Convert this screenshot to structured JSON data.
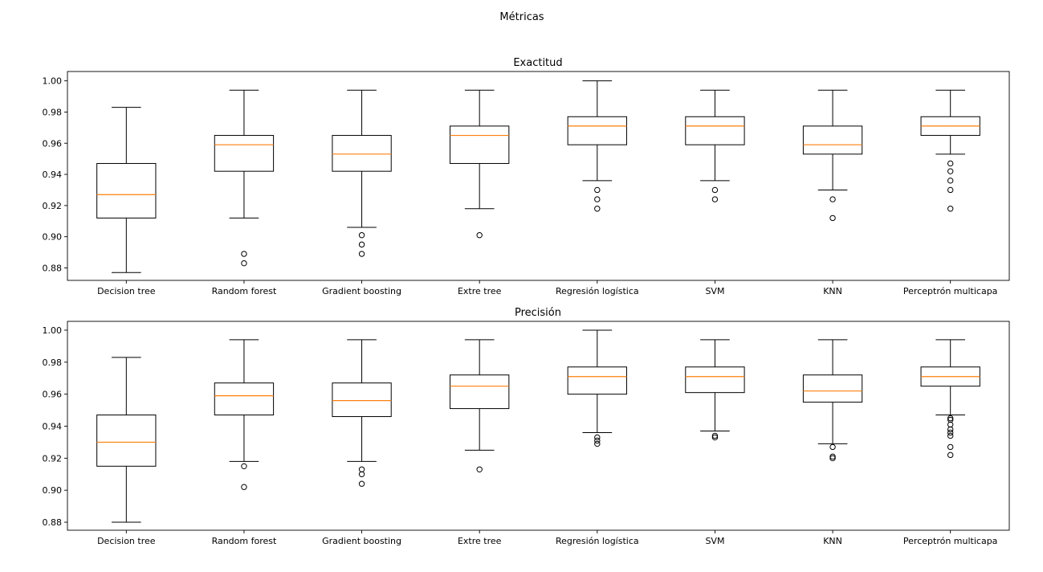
{
  "figure": {
    "suptitle": "Métricas"
  },
  "chart_data": [
    {
      "type": "box",
      "title": "Exactitud",
      "xlabel": "",
      "ylabel": "",
      "ylim": [
        0.872,
        1.006
      ],
      "yticks": [
        0.88,
        0.9,
        0.92,
        0.94,
        0.96,
        0.98,
        1.0
      ],
      "ytick_labels": [
        "0.88",
        "0.90",
        "0.92",
        "0.94",
        "0.96",
        "0.98",
        "1.00"
      ],
      "grid": false,
      "colors": {
        "box": "#000000",
        "median": "#ff7f0e",
        "flier": "#000000"
      },
      "categories": [
        "Decision tree",
        "Random forest",
        "Gradient boosting",
        "Extre tree",
        "Regresión logística",
        "SVM",
        "KNN",
        "Perceptrón multicapa"
      ],
      "boxes": [
        {
          "whisker_low": 0.877,
          "q1": 0.912,
          "median": 0.927,
          "q3": 0.947,
          "whisker_high": 0.983,
          "outliers": []
        },
        {
          "whisker_low": 0.912,
          "q1": 0.942,
          "median": 0.959,
          "q3": 0.965,
          "whisker_high": 0.994,
          "outliers": [
            0.889,
            0.883
          ]
        },
        {
          "whisker_low": 0.906,
          "q1": 0.942,
          "median": 0.953,
          "q3": 0.965,
          "whisker_high": 0.994,
          "outliers": [
            0.901,
            0.895,
            0.889
          ]
        },
        {
          "whisker_low": 0.918,
          "q1": 0.947,
          "median": 0.965,
          "q3": 0.971,
          "whisker_high": 0.994,
          "outliers": [
            0.901
          ]
        },
        {
          "whisker_low": 0.936,
          "q1": 0.959,
          "median": 0.971,
          "q3": 0.977,
          "whisker_high": 1.0,
          "outliers": [
            0.93,
            0.924,
            0.918
          ]
        },
        {
          "whisker_low": 0.936,
          "q1": 0.959,
          "median": 0.971,
          "q3": 0.977,
          "whisker_high": 0.994,
          "outliers": [
            0.93,
            0.924
          ]
        },
        {
          "whisker_low": 0.93,
          "q1": 0.953,
          "median": 0.959,
          "q3": 0.971,
          "whisker_high": 0.994,
          "outliers": [
            0.924,
            0.912
          ]
        },
        {
          "whisker_low": 0.953,
          "q1": 0.965,
          "median": 0.971,
          "q3": 0.977,
          "whisker_high": 0.994,
          "outliers": [
            0.947,
            0.942,
            0.936,
            0.93,
            0.918
          ]
        }
      ]
    },
    {
      "type": "box",
      "title": "Precisión",
      "xlabel": "",
      "ylabel": "",
      "ylim": [
        0.875,
        1.0055
      ],
      "yticks": [
        0.88,
        0.9,
        0.92,
        0.94,
        0.96,
        0.98,
        1.0
      ],
      "ytick_labels": [
        "0.88",
        "0.90",
        "0.92",
        "0.94",
        "0.96",
        "0.98",
        "1.00"
      ],
      "grid": false,
      "colors": {
        "box": "#000000",
        "median": "#ff7f0e",
        "flier": "#000000"
      },
      "categories": [
        "Decision tree",
        "Random forest",
        "Gradient boosting",
        "Extre tree",
        "Regresión logística",
        "SVM",
        "KNN",
        "Perceptrón multicapa"
      ],
      "boxes": [
        {
          "whisker_low": 0.88,
          "q1": 0.915,
          "median": 0.93,
          "q3": 0.947,
          "whisker_high": 0.983,
          "outliers": []
        },
        {
          "whisker_low": 0.918,
          "q1": 0.947,
          "median": 0.959,
          "q3": 0.967,
          "whisker_high": 0.994,
          "outliers": [
            0.915,
            0.902
          ]
        },
        {
          "whisker_low": 0.918,
          "q1": 0.946,
          "median": 0.956,
          "q3": 0.967,
          "whisker_high": 0.994,
          "outliers": [
            0.913,
            0.91,
            0.904
          ]
        },
        {
          "whisker_low": 0.925,
          "q1": 0.951,
          "median": 0.965,
          "q3": 0.972,
          "whisker_high": 0.994,
          "outliers": [
            0.913
          ]
        },
        {
          "whisker_low": 0.936,
          "q1": 0.96,
          "median": 0.971,
          "q3": 0.977,
          "whisker_high": 1.0,
          "outliers": [
            0.933,
            0.931,
            0.929
          ]
        },
        {
          "whisker_low": 0.937,
          "q1": 0.961,
          "median": 0.971,
          "q3": 0.977,
          "whisker_high": 0.994,
          "outliers": [
            0.934,
            0.933
          ]
        },
        {
          "whisker_low": 0.929,
          "q1": 0.955,
          "median": 0.962,
          "q3": 0.972,
          "whisker_high": 0.994,
          "outliers": [
            0.927,
            0.921,
            0.92
          ]
        },
        {
          "whisker_low": 0.947,
          "q1": 0.965,
          "median": 0.971,
          "q3": 0.977,
          "whisker_high": 0.994,
          "outliers": [
            0.945,
            0.944,
            0.941,
            0.938,
            0.936,
            0.934,
            0.927,
            0.922
          ]
        }
      ]
    }
  ]
}
